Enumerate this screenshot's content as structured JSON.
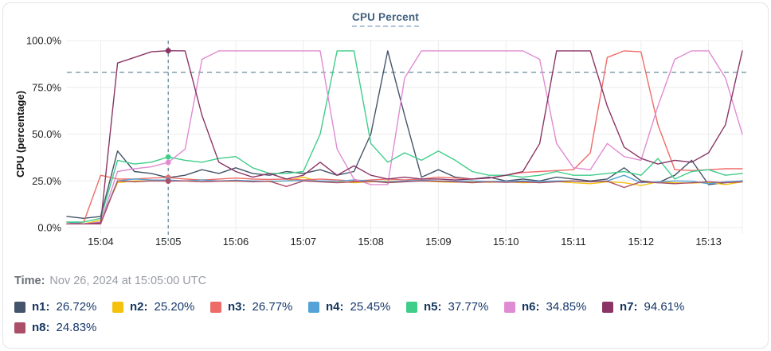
{
  "time_info": {
    "label": "Time:",
    "value": "Nov 26, 2024 at 15:05:00 UTC"
  },
  "legend": [
    {
      "name": "n1:",
      "value": "26.72%",
      "color": "#44546a"
    },
    {
      "name": "n2:",
      "value": "25.20%",
      "color": "#f4c20d"
    },
    {
      "name": "n3:",
      "value": "26.77%",
      "color": "#ee6c68"
    },
    {
      "name": "n4:",
      "value": "25.45%",
      "color": "#55a3d6"
    },
    {
      "name": "n5:",
      "value": "37.77%",
      "color": "#3fcd8a"
    },
    {
      "name": "n6:",
      "value": "34.85%",
      "color": "#e08cd2"
    },
    {
      "name": "n7:",
      "value": "94.61%",
      "color": "#8a3565"
    },
    {
      "name": "n8:",
      "value": "24.83%",
      "color": "#aa4f67"
    }
  ],
  "chart_data": {
    "type": "line",
    "title": "CPU Percent",
    "xlabel": "",
    "ylabel": "CPU (percentage)",
    "xlim": [
      3.5,
      13.5
    ],
    "ylim": [
      0,
      100
    ],
    "grid": true,
    "legend_position": "bottom",
    "threshold": 83,
    "crosshair_x": 5,
    "x_tick_values": [
      4,
      5,
      6,
      7,
      8,
      9,
      10,
      11,
      12,
      13
    ],
    "x_tick_labels": [
      "15:04",
      "15:05",
      "15:06",
      "15:07",
      "15:08",
      "15:09",
      "15:10",
      "15:11",
      "15:12",
      "15:13"
    ],
    "y_tick_values": [
      0,
      25,
      50,
      75,
      100
    ],
    "y_tick_labels": [
      "0.0%",
      "25.0%",
      "50.0%",
      "75.0%",
      "100.0%"
    ],
    "x": [
      3.5,
      3.75,
      4,
      4.25,
      4.5,
      4.75,
      5,
      5.25,
      5.5,
      5.75,
      6,
      6.25,
      6.5,
      6.75,
      7,
      7.25,
      7.5,
      7.75,
      8,
      8.25,
      8.5,
      8.75,
      9,
      9.25,
      9.5,
      9.75,
      10,
      10.25,
      10.5,
      10.75,
      11,
      11.25,
      11.5,
      11.75,
      12,
      12.25,
      12.5,
      12.75,
      13,
      13.25,
      13.5
    ],
    "series": [
      {
        "name": "n1",
        "color": "#44546a",
        "values": [
          6,
          5,
          6,
          41,
          30,
          29,
          26.72,
          28,
          31,
          29,
          32,
          29,
          28,
          30,
          29,
          31,
          28,
          30,
          50,
          94.5,
          60,
          27,
          31,
          27,
          26,
          27,
          25,
          26,
          25,
          27,
          26,
          25,
          26,
          32,
          25,
          24,
          28,
          36,
          23,
          24,
          25
        ]
      },
      {
        "name": "n2",
        "color": "#f4c20d",
        "values": [
          3,
          2,
          4,
          24,
          25,
          25,
          25.2,
          25,
          24.5,
          25,
          24.8,
          25,
          24.6,
          25,
          27,
          24.5,
          24.8,
          24,
          24.5,
          25,
          24.7,
          25,
          24.5,
          24.3,
          24.6,
          24.2,
          24.5,
          24,
          24.3,
          24.6,
          24,
          23.5,
          24.5,
          24,
          22.5,
          24.5,
          24,
          23.8,
          24.2,
          23,
          24.5
        ]
      },
      {
        "name": "n3",
        "color": "#ee6c68",
        "values": [
          2,
          3,
          28,
          26,
          26,
          26.5,
          26.77,
          26,
          25.5,
          26,
          26.5,
          26,
          25.8,
          26,
          25.5,
          26,
          25.5,
          25,
          25.5,
          26,
          25.5,
          26,
          27,
          26.5,
          26,
          26.5,
          28,
          29.5,
          30,
          30.5,
          31,
          40,
          91,
          94.5,
          94,
          55,
          31,
          30.5,
          31,
          31.5,
          31.5
        ]
      },
      {
        "name": "n4",
        "color": "#55a3d6",
        "values": [
          3,
          2,
          3,
          25,
          26,
          25.5,
          25.45,
          25,
          25.5,
          25,
          25.3,
          25,
          24.8,
          25,
          25.2,
          25,
          24.8,
          25.5,
          25,
          24.5,
          25,
          25.3,
          25,
          24.8,
          25,
          24.6,
          24.8,
          25,
          24.7,
          25,
          24.9,
          24.5,
          25,
          28,
          24,
          24.5,
          25,
          24.8,
          23.5,
          24.5,
          25
        ]
      },
      {
        "name": "n5",
        "color": "#3fcd8a",
        "values": [
          3,
          3,
          5,
          36,
          34,
          35,
          37.77,
          36,
          35,
          37,
          38,
          32,
          29,
          29,
          30,
          50,
          94.5,
          94.5,
          45,
          35,
          40,
          36,
          41,
          36,
          30,
          28,
          28,
          27,
          28,
          30,
          28,
          28,
          29,
          30,
          28,
          37,
          26,
          30,
          31,
          28,
          29
        ]
      },
      {
        "name": "n6",
        "color": "#e08cd2",
        "values": [
          2,
          2,
          3,
          30,
          31.5,
          32.5,
          34.85,
          42,
          90,
          94.5,
          94.5,
          94.5,
          94.5,
          94.5,
          94.5,
          94.5,
          42,
          26,
          23,
          23,
          80,
          94.5,
          94.5,
          94.5,
          94.5,
          94.5,
          94.5,
          94.5,
          90,
          45,
          32,
          31,
          45,
          38,
          36,
          65,
          90,
          94.5,
          94.5,
          80,
          50
        ]
      },
      {
        "name": "n7",
        "color": "#8a3565",
        "values": [
          2,
          2,
          2.5,
          88,
          91,
          94,
          94.61,
          94.5,
          60,
          35,
          30,
          27,
          29,
          26,
          28,
          35,
          28,
          33,
          28,
          26,
          27,
          26,
          26,
          25.5,
          26,
          26.5,
          28,
          30,
          45,
          94.5,
          94.5,
          94.5,
          65,
          43,
          37,
          34,
          36,
          35,
          40,
          55,
          94.5
        ]
      },
      {
        "name": "n8",
        "color": "#aa4f67",
        "values": [
          2,
          2,
          2,
          25,
          24.5,
          25,
          24.83,
          25,
          24.5,
          24.8,
          25,
          24.5,
          24.8,
          22,
          25,
          24.5,
          24,
          24.5,
          24.8,
          24,
          24.5,
          25,
          24.8,
          24.5,
          24,
          24.5,
          24.2,
          24.5,
          24,
          24.5,
          25,
          24.5,
          24.8,
          21.5,
          24.5,
          24,
          23.5,
          24,
          24.5,
          24,
          24.5
        ]
      }
    ]
  }
}
